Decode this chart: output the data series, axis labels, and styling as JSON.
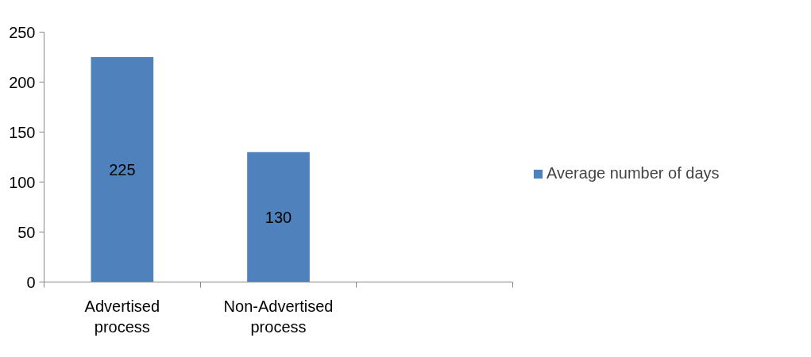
{
  "chart_data": {
    "type": "bar",
    "categories": [
      "Advertised process",
      "Non-Advertised process",
      null
    ],
    "series": [
      {
        "name": "Average number of days",
        "color": "#4f81bd",
        "values": [
          225,
          130,
          null
        ]
      }
    ],
    "ylim": [
      0,
      250
    ],
    "yticks": [
      0,
      50,
      100,
      150,
      200,
      250
    ],
    "grid": false,
    "legend": "right",
    "data_labels": true
  }
}
